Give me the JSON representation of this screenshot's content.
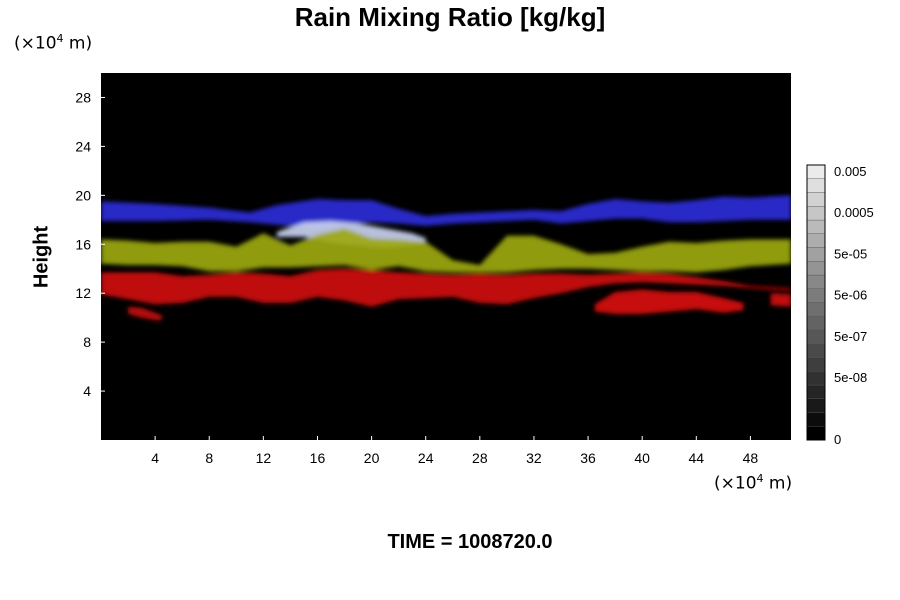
{
  "chart_data": {
    "type": "heatmap",
    "title": "Rain Mixing Ratio [kg/kg]",
    "ylabel": "Height",
    "x_unit": "(×10",
    "y_unit": "(×10",
    "unit_exponent": "4",
    "unit_suffix": " m)",
    "xlim": [
      0,
      51
    ],
    "ylim": [
      0,
      30
    ],
    "x_ticks": [
      4,
      8,
      12,
      16,
      20,
      24,
      28,
      32,
      36,
      40,
      44,
      48
    ],
    "y_ticks": [
      4,
      8,
      12,
      16,
      20,
      24,
      28
    ],
    "colorbar": {
      "levels": 20,
      "labels": [
        "0.005",
        "0.0005",
        "5e-05",
        "5e-06",
        "5e-07",
        "5e-08",
        "0"
      ],
      "label_levels": [
        19,
        16,
        13,
        10,
        7,
        4,
        0
      ]
    },
    "layers": [
      {
        "color": "#2a2ad8",
        "y_bottom": 17.5,
        "y_top": 19.6,
        "x": [
          0,
          4,
          8,
          11,
          13,
          16,
          18,
          20,
          22,
          24,
          26,
          28,
          30,
          32,
          34,
          36,
          38,
          40,
          42,
          44,
          46,
          48,
          51
        ],
        "y_center": [
          18.7,
          18.6,
          18.5,
          18.2,
          18.4,
          18.5,
          18.6,
          18.7,
          18.3,
          17.9,
          18.1,
          18.2,
          18.3,
          18.4,
          18.2,
          18.6,
          18.9,
          18.8,
          18.6,
          18.7,
          18.9,
          18.9,
          19.0
        ],
        "half_thickness": [
          0.8,
          0.7,
          0.5,
          0.4,
          0.8,
          1.2,
          1.0,
          0.9,
          0.6,
          0.4,
          0.4,
          0.4,
          0.4,
          0.4,
          0.5,
          0.7,
          0.8,
          0.7,
          0.8,
          0.9,
          1.0,
          0.9,
          1.0
        ]
      },
      {
        "color": "#c8d0f0",
        "x": [
          13,
          15,
          17,
          19,
          21,
          23,
          24
        ],
        "y_center": [
          16.8,
          17.2,
          17.0,
          16.8,
          16.5,
          16.4,
          16.3
        ],
        "half_thickness": [
          0.2,
          0.6,
          0.9,
          0.9,
          0.8,
          0.5,
          0.2
        ]
      },
      {
        "color": "#9ca810",
        "x": [
          0,
          2,
          4,
          6,
          8,
          10,
          12,
          14,
          16,
          18,
          20,
          22,
          24,
          26,
          28,
          30,
          32,
          34,
          36,
          38,
          40,
          42,
          44,
          46,
          48,
          51
        ],
        "y_center": [
          15.4,
          15.3,
          15.2,
          15.2,
          15.0,
          14.8,
          15.5,
          15.0,
          15.5,
          15.8,
          15.2,
          15.3,
          15.0,
          14.2,
          14.0,
          15.2,
          15.3,
          15.0,
          14.6,
          14.6,
          14.8,
          15.0,
          14.9,
          15.1,
          15.3,
          15.4
        ],
        "half_thickness": [
          1.0,
          1.0,
          0.9,
          1.0,
          1.2,
          1.0,
          1.4,
          0.9,
          1.3,
          1.5,
          1.3,
          1.1,
          1.2,
          0.5,
          0.3,
          1.5,
          1.4,
          1.0,
          0.6,
          0.7,
          1.0,
          1.2,
          1.2,
          1.2,
          1.1,
          1.0
        ]
      },
      {
        "color": "#cf1212",
        "x": [
          0,
          2,
          4,
          6,
          8,
          10,
          12,
          14,
          16,
          18,
          20,
          22,
          24,
          26,
          28,
          30,
          32,
          34,
          36,
          38,
          40,
          42,
          44,
          46,
          48,
          51
        ],
        "y_center": [
          12.8,
          12.6,
          12.4,
          12.3,
          12.6,
          12.7,
          12.4,
          12.3,
          12.8,
          12.7,
          12.4,
          12.6,
          12.6,
          12.6,
          12.4,
          12.3,
          12.6,
          12.8,
          13.0,
          13.2,
          13.3,
          13.2,
          13.0,
          12.8,
          12.5,
          12.3
        ],
        "half_thickness": [
          0.9,
          1.1,
          1.3,
          1.1,
          0.9,
          1.0,
          1.2,
          1.1,
          1.1,
          1.3,
          1.5,
          1.1,
          1.0,
          0.9,
          1.2,
          1.2,
          1.0,
          0.8,
          0.5,
          0.4,
          0.4,
          0.4,
          0.3,
          0.2,
          0.1,
          0.1
        ]
      },
      {
        "color": "#d81010",
        "x": [
          36.5,
          38,
          40,
          42,
          44,
          46,
          47.5
        ],
        "y_center": [
          10.8,
          11.2,
          11.3,
          11.3,
          11.4,
          11.0,
          10.9
        ],
        "half_thickness": [
          0.3,
          0.9,
          1.0,
          0.8,
          0.7,
          0.6,
          0.3
        ]
      },
      {
        "color": "#d01010",
        "x": [
          49.5,
          51
        ],
        "y_center": [
          11.5,
          11.4
        ],
        "half_thickness": [
          0.5,
          0.5
        ]
      },
      {
        "color": "#c81010",
        "x": [
          2,
          3,
          4,
          4.5
        ],
        "y_center": [
          10.6,
          10.4,
          10.1,
          10.0
        ],
        "half_thickness": [
          0.3,
          0.4,
          0.3,
          0.2
        ]
      }
    ]
  },
  "footer": {
    "time_label": "TIME = 1008720.0"
  }
}
